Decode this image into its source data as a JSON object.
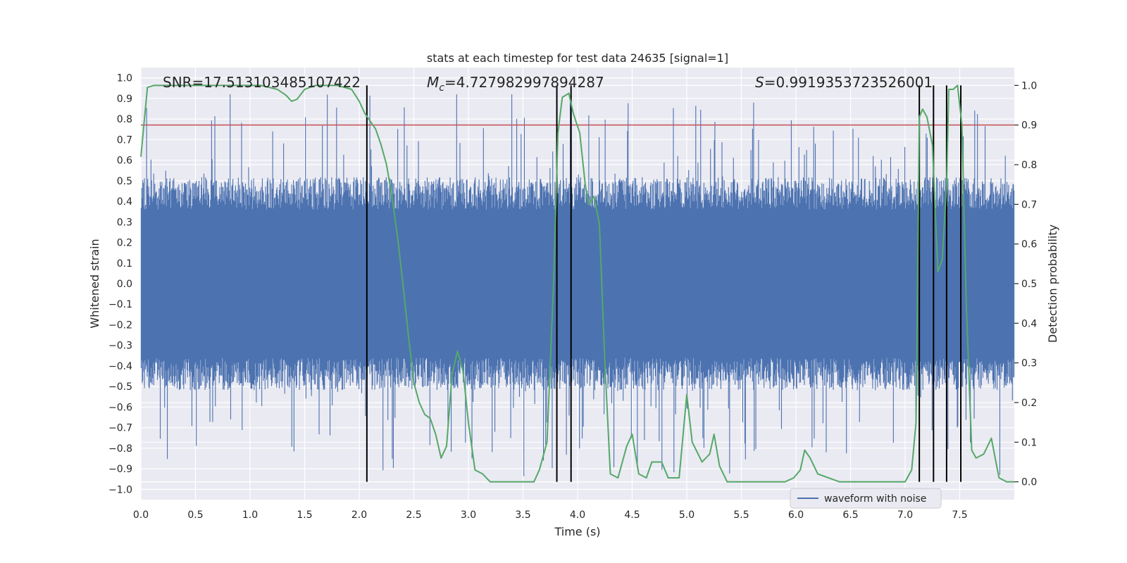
{
  "chart_data": {
    "type": "line",
    "title": "stats at each timestep for test data 24635 [signal=1]",
    "xlabel": "Time (s)",
    "ylabel_left": "Whitened strain",
    "ylabel_right": "Detection probability",
    "xlim": [
      0,
      8
    ],
    "ylim_left": [
      -1.05,
      1.05
    ],
    "ylim_right": [
      -0.045,
      1.045
    ],
    "xticks": [
      0.0,
      0.5,
      1.0,
      1.5,
      2.0,
      2.5,
      3.0,
      3.5,
      4.0,
      4.5,
      5.0,
      5.5,
      6.0,
      6.5,
      7.0,
      7.5
    ],
    "xtick_labels": [
      "0.0",
      "0.5",
      "1.0",
      "1.5",
      "2.0",
      "2.5",
      "3.0",
      "3.5",
      "4.0",
      "4.5",
      "5.0",
      "5.5",
      "6.0",
      "6.5",
      "7.0",
      "7.5"
    ],
    "yticks_left": [
      -1.0,
      -0.9,
      -0.8,
      -0.7,
      -0.6,
      -0.5,
      -0.4,
      -0.3,
      -0.2,
      -0.1,
      0.0,
      0.1,
      0.2,
      0.3,
      0.4,
      0.5,
      0.6,
      0.7,
      0.8,
      0.9,
      1.0
    ],
    "ytick_labels_left": [
      "−1.0",
      "−0.9",
      "−0.8",
      "−0.7",
      "−0.6",
      "−0.5",
      "−0.4",
      "−0.3",
      "−0.2",
      "−0.1",
      "0.0",
      "0.1",
      "0.2",
      "0.3",
      "0.4",
      "0.5",
      "0.6",
      "0.7",
      "0.8",
      "0.9",
      "1.0"
    ],
    "yticks_right": [
      0.0,
      0.1,
      0.2,
      0.3,
      0.4,
      0.5,
      0.6,
      0.7,
      0.8,
      0.9,
      1.0
    ],
    "ytick_labels_right": [
      "0.0",
      "0.1",
      "0.2",
      "0.3",
      "0.4",
      "0.5",
      "0.6",
      "0.7",
      "0.8",
      "0.9",
      "1.0"
    ],
    "annotations": {
      "snr": "SNR=17.513103485107422",
      "mc_symbol": "M",
      "mc_sub": "c",
      "mc_value": "=4.727982997894287",
      "s_symbol": "S",
      "s_value": "=0.9919353723526001"
    },
    "threshold": {
      "value": 0.9,
      "axis": "right",
      "color": "#c44e52"
    },
    "detection_markers_x": [
      2.07,
      3.81,
      3.94,
      7.13,
      7.26,
      7.38,
      7.51
    ],
    "legend": {
      "label": "waveform with noise",
      "placement": "lower-right"
    },
    "series": [
      {
        "name": "waveform with noise",
        "axis": "left",
        "color": "#4c72b0",
        "kind": "noisy-waveform",
        "x_range": [
          0,
          8
        ],
        "typical_band": [
          -0.45,
          0.45
        ],
        "extremes": {
          "min": -0.95,
          "max": 0.92
        }
      },
      {
        "name": "",
        "axis": "right",
        "color": "#55a868",
        "x": [
          0.0,
          0.06,
          0.12,
          0.2,
          0.3,
          0.5,
          0.7,
          0.9,
          1.1,
          1.25,
          1.33,
          1.38,
          1.43,
          1.5,
          1.6,
          1.7,
          1.8,
          1.93,
          2.0,
          2.05,
          2.1,
          2.15,
          2.2,
          2.25,
          2.3,
          2.35,
          2.4,
          2.45,
          2.5,
          2.55,
          2.6,
          2.65,
          2.7,
          2.75,
          2.8,
          2.85,
          2.9,
          2.95,
          3.0,
          3.06,
          3.13,
          3.2,
          3.25,
          3.3,
          3.4,
          3.5,
          3.6,
          3.65,
          3.72,
          3.78,
          3.82,
          3.86,
          3.92,
          3.96,
          4.02,
          4.07,
          4.1,
          4.15,
          4.2,
          4.25,
          4.3,
          4.37,
          4.45,
          4.5,
          4.56,
          4.63,
          4.68,
          4.77,
          4.83,
          4.93,
          5.0,
          5.05,
          5.14,
          5.21,
          5.25,
          5.3,
          5.37,
          5.5,
          5.7,
          5.9,
          5.98,
          6.04,
          6.08,
          6.13,
          6.2,
          6.3,
          6.4,
          6.6,
          6.8,
          7.0,
          7.06,
          7.1,
          7.13,
          7.16,
          7.2,
          7.25,
          7.3,
          7.34,
          7.38,
          7.4,
          7.44,
          7.48,
          7.52,
          7.56,
          7.61,
          7.65,
          7.72,
          7.79,
          7.86,
          7.93,
          8.0
        ],
        "y": [
          0.82,
          0.995,
          1.0,
          1.0,
          1.0,
          1.0,
          1.0,
          1.0,
          1.0,
          0.99,
          0.975,
          0.96,
          0.965,
          0.99,
          1.0,
          1.0,
          1.0,
          0.99,
          0.96,
          0.93,
          0.91,
          0.89,
          0.85,
          0.8,
          0.72,
          0.62,
          0.5,
          0.37,
          0.25,
          0.2,
          0.17,
          0.16,
          0.12,
          0.06,
          0.09,
          0.27,
          0.33,
          0.28,
          0.15,
          0.03,
          0.02,
          0.0,
          0.0,
          0.0,
          0.0,
          0.0,
          0.0,
          0.03,
          0.1,
          0.5,
          0.88,
          0.97,
          0.98,
          0.93,
          0.88,
          0.75,
          0.7,
          0.72,
          0.65,
          0.3,
          0.02,
          0.01,
          0.09,
          0.12,
          0.02,
          0.01,
          0.05,
          0.05,
          0.01,
          0.01,
          0.22,
          0.1,
          0.05,
          0.07,
          0.12,
          0.04,
          0.0,
          0.0,
          0.0,
          0.0,
          0.01,
          0.03,
          0.08,
          0.06,
          0.02,
          0.01,
          0.0,
          0.0,
          0.0,
          0.0,
          0.03,
          0.15,
          0.92,
          0.94,
          0.92,
          0.85,
          0.53,
          0.56,
          0.75,
          0.99,
          0.99,
          1.0,
          0.9,
          0.45,
          0.08,
          0.06,
          0.07,
          0.11,
          0.01,
          0.0,
          0.0
        ]
      }
    ]
  }
}
